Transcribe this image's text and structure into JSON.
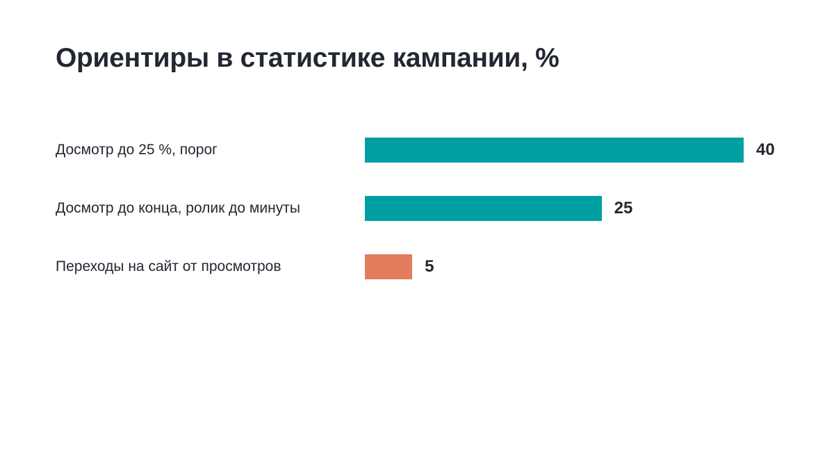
{
  "chart_data": {
    "type": "bar",
    "orientation": "horizontal",
    "title": "Ориентиры в статистике кампании, %",
    "categories": [
      "Досмотр до 25 %, порог",
      "Досмотр до конца, ролик до минуты",
      "Переходы на сайт от просмотров"
    ],
    "values": [
      40,
      25,
      5
    ],
    "colors": [
      "#009fa3",
      "#009fa3",
      "#e47c5e"
    ],
    "value_labels": [
      "40",
      "25",
      "5"
    ],
    "xlim": [
      0,
      40
    ],
    "grid": false,
    "legend": "none"
  }
}
